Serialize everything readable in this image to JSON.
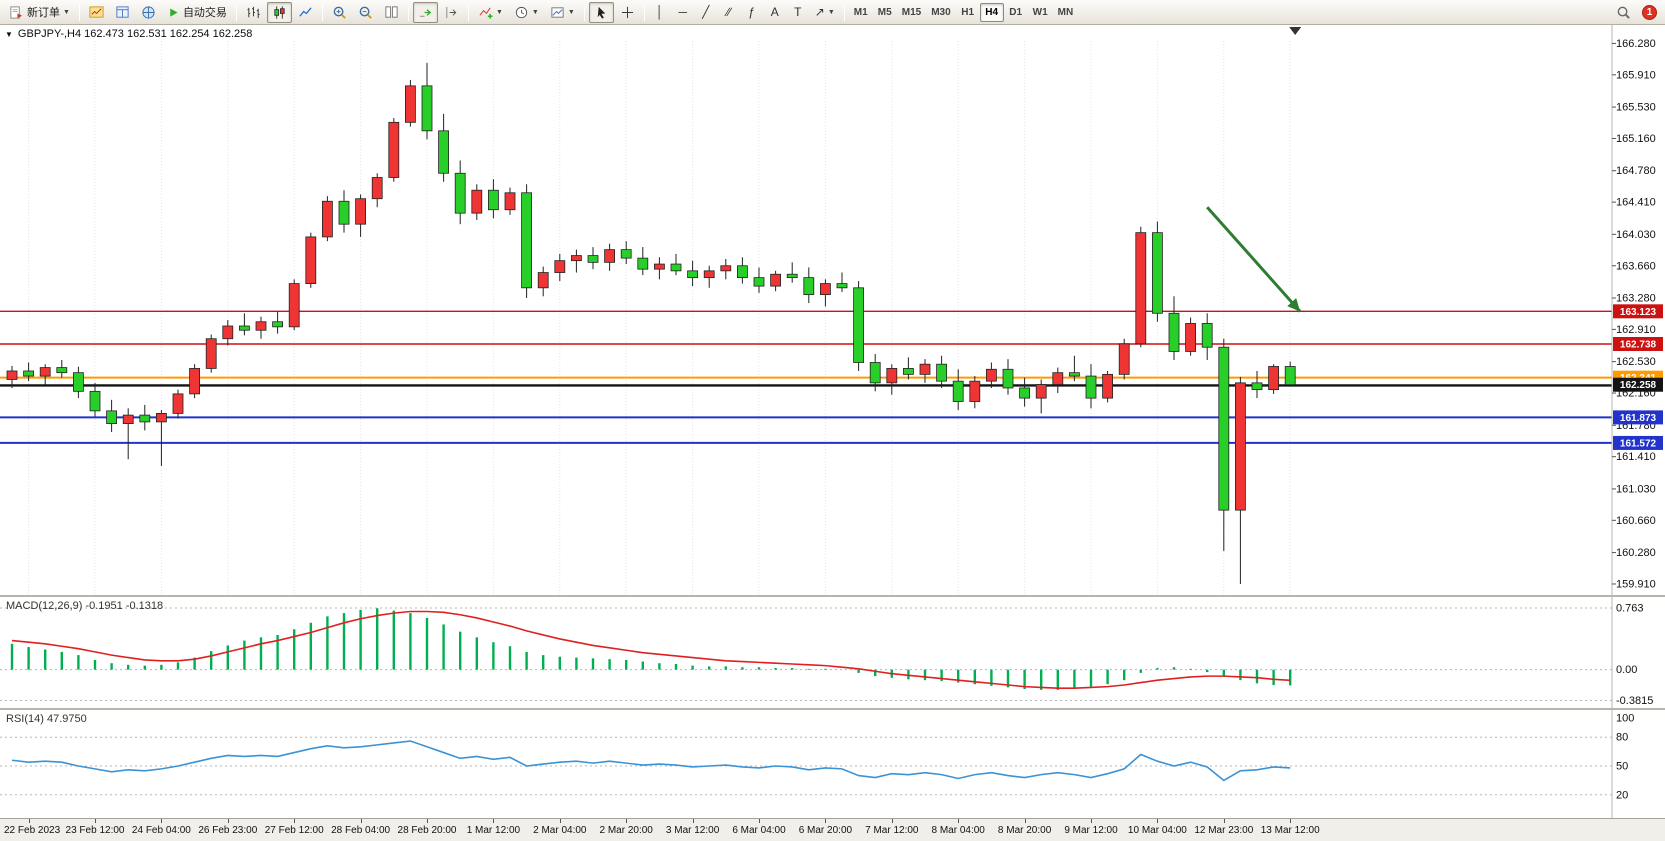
{
  "toolbar": {
    "new_order_label": "新订单",
    "autotrading_label": "自动交易",
    "timeframes": [
      "M1",
      "M5",
      "M15",
      "M30",
      "H1",
      "H4",
      "D1",
      "W1",
      "MN"
    ],
    "active_timeframe": "H4",
    "pressed_buttons": [
      "candlestick-chart-button",
      "auto-scroll-button",
      "cursor-button"
    ],
    "badge_count": "1"
  },
  "chart_header": {
    "title": "GBPJPY-,H4 162.473 162.531 162.254 162.258"
  },
  "indicator_labels": {
    "macd": "MACD(12,26,9) -0.1951 -0.1318",
    "rsi": "RSI(14) 47.9750"
  },
  "chart_data": [
    {
      "type": "candlestick",
      "symbol": "GBPJPY-",
      "timeframe": "H4",
      "ohlc_display": {
        "open": "162.473",
        "high": "162.531",
        "low": "162.254",
        "close": "162.258"
      },
      "ylim": [
        159.78,
        166.45
      ],
      "price_ticks": [
        "166.280",
        "165.910",
        "165.530",
        "165.160",
        "164.780",
        "164.410",
        "164.030",
        "163.660",
        "163.280",
        "162.910",
        "162.530",
        "162.160",
        "161.780",
        "161.410",
        "161.030",
        "160.660",
        "160.280",
        "159.910"
      ],
      "x_labels": [
        "22 Feb 2023",
        "23 Feb 12:00",
        "24 Feb 04:00",
        "26 Feb 23:00",
        "27 Feb 12:00",
        "28 Feb 04:00",
        "28 Feb 20:00",
        "1 Mar 12:00",
        "2 Mar 04:00",
        "2 Mar 20:00",
        "3 Mar 12:00",
        "6 Mar 04:00",
        "6 Mar 20:00",
        "7 Mar 12:00",
        "8 Mar 04:00",
        "8 Mar 20:00",
        "9 Mar 12:00",
        "10 Mar 04:00",
        "12 Mar 23:00",
        "13 Mar 12:00"
      ],
      "x_label_bar_index": [
        1,
        5,
        9,
        13,
        17,
        21,
        25,
        29,
        33,
        37,
        41,
        45,
        49,
        53,
        57,
        61,
        65,
        69,
        73,
        77
      ],
      "bull_color": "#ef3434",
      "bear_color": "#29cf29",
      "candles": [
        [
          162.32,
          162.48,
          162.22,
          162.42
        ],
        [
          162.42,
          162.52,
          162.3,
          162.36
        ],
        [
          162.36,
          162.5,
          162.26,
          162.46
        ],
        [
          162.46,
          162.55,
          162.34,
          162.4
        ],
        [
          162.4,
          162.47,
          162.1,
          162.18
        ],
        [
          162.18,
          162.28,
          161.88,
          161.95
        ],
        [
          161.95,
          162.08,
          161.7,
          161.8
        ],
        [
          161.8,
          161.98,
          161.38,
          161.9
        ],
        [
          161.9,
          162.02,
          161.72,
          161.82
        ],
        [
          161.82,
          161.96,
          161.3,
          161.92
        ],
        [
          161.92,
          162.2,
          161.86,
          162.15
        ],
        [
          162.15,
          162.5,
          162.1,
          162.45
        ],
        [
          162.45,
          162.85,
          162.4,
          162.8
        ],
        [
          162.8,
          163.02,
          162.72,
          162.95
        ],
        [
          162.95,
          163.1,
          162.84,
          162.9
        ],
        [
          162.9,
          163.06,
          162.8,
          163.0
        ],
        [
          163.0,
          163.12,
          162.86,
          162.94
        ],
        [
          162.94,
          163.5,
          162.9,
          163.45
        ],
        [
          163.45,
          164.05,
          163.4,
          164.0
        ],
        [
          164.0,
          164.48,
          163.95,
          164.42
        ],
        [
          164.42,
          164.55,
          164.05,
          164.15
        ],
        [
          164.15,
          164.5,
          164.0,
          164.45
        ],
        [
          164.45,
          164.75,
          164.35,
          164.7
        ],
        [
          164.7,
          165.4,
          164.65,
          165.35
        ],
        [
          165.35,
          165.85,
          165.3,
          165.78
        ],
        [
          165.78,
          166.05,
          165.15,
          165.25
        ],
        [
          165.25,
          165.45,
          164.65,
          164.75
        ],
        [
          164.75,
          164.9,
          164.15,
          164.28
        ],
        [
          164.28,
          164.62,
          164.2,
          164.55
        ],
        [
          164.55,
          164.68,
          164.22,
          164.32
        ],
        [
          164.32,
          164.58,
          164.26,
          164.52
        ],
        [
          164.52,
          164.62,
          163.28,
          163.4
        ],
        [
          163.4,
          163.65,
          163.3,
          163.58
        ],
        [
          163.58,
          163.8,
          163.48,
          163.72
        ],
        [
          163.72,
          163.85,
          163.58,
          163.78
        ],
        [
          163.78,
          163.88,
          163.62,
          163.7
        ],
        [
          163.7,
          163.92,
          163.6,
          163.85
        ],
        [
          163.85,
          163.95,
          163.68,
          163.75
        ],
        [
          163.75,
          163.88,
          163.55,
          163.62
        ],
        [
          163.62,
          163.76,
          163.5,
          163.68
        ],
        [
          163.68,
          163.8,
          163.55,
          163.6
        ],
        [
          163.6,
          163.72,
          163.42,
          163.52
        ],
        [
          163.52,
          163.66,
          163.4,
          163.6
        ],
        [
          163.6,
          163.74,
          163.5,
          163.66
        ],
        [
          163.66,
          163.76,
          163.45,
          163.52
        ],
        [
          163.52,
          163.64,
          163.34,
          163.42
        ],
        [
          163.42,
          163.6,
          163.36,
          163.56
        ],
        [
          163.56,
          163.7,
          163.46,
          163.52
        ],
        [
          163.52,
          163.64,
          163.22,
          163.32
        ],
        [
          163.32,
          163.5,
          163.18,
          163.45
        ],
        [
          163.45,
          163.58,
          163.35,
          163.4
        ],
        [
          163.4,
          163.48,
          162.42,
          162.52
        ],
        [
          162.52,
          162.62,
          162.18,
          162.28
        ],
        [
          162.28,
          162.5,
          162.14,
          162.45
        ],
        [
          162.45,
          162.58,
          162.32,
          162.38
        ],
        [
          162.38,
          162.56,
          162.28,
          162.5
        ],
        [
          162.5,
          162.6,
          162.22,
          162.3
        ],
        [
          162.3,
          162.44,
          161.96,
          162.06
        ],
        [
          162.06,
          162.36,
          161.98,
          162.3
        ],
        [
          162.3,
          162.52,
          162.22,
          162.44
        ],
        [
          162.44,
          162.56,
          162.14,
          162.22
        ],
        [
          162.22,
          162.34,
          162.0,
          162.1
        ],
        [
          162.1,
          162.32,
          161.92,
          162.26
        ],
        [
          162.26,
          162.46,
          162.16,
          162.4
        ],
        [
          162.4,
          162.6,
          162.3,
          162.36
        ],
        [
          162.36,
          162.5,
          161.98,
          162.1
        ],
        [
          162.1,
          162.42,
          162.05,
          162.38
        ],
        [
          162.38,
          162.8,
          162.32,
          162.74
        ],
        [
          162.74,
          164.12,
          162.7,
          164.05
        ],
        [
          164.05,
          164.18,
          163.0,
          163.1
        ],
        [
          163.1,
          163.3,
          162.55,
          162.65
        ],
        [
          162.65,
          163.05,
          162.6,
          162.98
        ],
        [
          162.98,
          163.1,
          162.55,
          162.7
        ],
        [
          162.7,
          162.8,
          160.3,
          160.78
        ],
        [
          160.78,
          162.35,
          159.91,
          162.28
        ],
        [
          162.28,
          162.42,
          162.1,
          162.2
        ],
        [
          162.2,
          162.5,
          162.15,
          162.473
        ],
        [
          162.473,
          162.531,
          162.254,
          162.258
        ]
      ],
      "hlines": [
        {
          "price": 163.123,
          "color": "#cc1111",
          "width": 1.4,
          "label": "163.123",
          "label_bg": "#cc1111"
        },
        {
          "price": 162.738,
          "color": "#cc1111",
          "width": 1.4,
          "label": "162.738",
          "label_bg": "#cc1111"
        },
        {
          "price": 162.341,
          "color": "#ff9a00",
          "width": 2,
          "label": "162.341",
          "label_bg": "#ff9a00"
        },
        {
          "price": 162.25,
          "color": "#141414",
          "width": 2.4,
          "label": "",
          "label_bg": ""
        },
        {
          "price": 161.873,
          "color": "#2233cc",
          "width": 2,
          "label": "161.873",
          "label_bg": "#2233cc"
        },
        {
          "price": 161.572,
          "color": "#2233cc",
          "width": 2,
          "label": "161.572",
          "label_bg": "#2233cc"
        }
      ],
      "current_price": {
        "value": "162.258",
        "box_color": "#141414"
      },
      "shift_marker_bar": 77.3,
      "arrow_annotation": {
        "from_bar": 72.0,
        "from_price": 164.35,
        "to_bar": 77.6,
        "to_price": 163.12,
        "color": "#2e7d32"
      }
    },
    {
      "type": "bar",
      "name": "MACD",
      "params": "12,26,9",
      "values_label": "-0.1951 -0.1318",
      "ylim": [
        -0.45,
        0.85
      ],
      "axis_ticks": [
        {
          "v": 0.763,
          "label": "0.763"
        },
        {
          "v": 0,
          "label": "0.00"
        },
        {
          "v": -0.3815,
          "label": "-0.3815"
        }
      ],
      "histogram_color": "#00b050",
      "signal_color": "#e02020",
      "histogram": [
        0.32,
        0.28,
        0.25,
        0.22,
        0.18,
        0.12,
        0.08,
        0.06,
        0.05,
        0.06,
        0.09,
        0.15,
        0.23,
        0.3,
        0.36,
        0.4,
        0.43,
        0.5,
        0.58,
        0.66,
        0.7,
        0.74,
        0.76,
        0.73,
        0.7,
        0.64,
        0.56,
        0.47,
        0.4,
        0.34,
        0.29,
        0.22,
        0.18,
        0.16,
        0.15,
        0.14,
        0.13,
        0.12,
        0.1,
        0.08,
        0.07,
        0.05,
        0.04,
        0.04,
        0.03,
        0.03,
        0.02,
        0.02,
        0.01,
        0.01,
        0.0,
        -0.04,
        -0.08,
        -0.1,
        -0.12,
        -0.13,
        -0.14,
        -0.16,
        -0.18,
        -0.2,
        -0.22,
        -0.24,
        -0.25,
        -0.25,
        -0.23,
        -0.21,
        -0.18,
        -0.13,
        -0.04,
        0.02,
        0.03,
        0.01,
        -0.03,
        -0.08,
        -0.13,
        -0.17,
        -0.19,
        -0.195
      ],
      "signal": [
        0.36,
        0.34,
        0.32,
        0.29,
        0.26,
        0.22,
        0.18,
        0.15,
        0.12,
        0.11,
        0.11,
        0.13,
        0.17,
        0.22,
        0.27,
        0.32,
        0.36,
        0.41,
        0.46,
        0.52,
        0.58,
        0.63,
        0.67,
        0.7,
        0.72,
        0.72,
        0.71,
        0.68,
        0.64,
        0.59,
        0.54,
        0.48,
        0.43,
        0.38,
        0.34,
        0.3,
        0.27,
        0.24,
        0.21,
        0.19,
        0.17,
        0.15,
        0.13,
        0.11,
        0.1,
        0.09,
        0.08,
        0.07,
        0.06,
        0.05,
        0.03,
        0.01,
        -0.02,
        -0.05,
        -0.07,
        -0.09,
        -0.11,
        -0.13,
        -0.15,
        -0.17,
        -0.19,
        -0.21,
        -0.22,
        -0.23,
        -0.23,
        -0.22,
        -0.21,
        -0.19,
        -0.16,
        -0.13,
        -0.11,
        -0.09,
        -0.08,
        -0.08,
        -0.09,
        -0.1,
        -0.12,
        -0.1318
      ]
    },
    {
      "type": "line",
      "name": "RSI",
      "params": "14",
      "value_label": "47.9750",
      "ylim": [
        0,
        100
      ],
      "axis_ticks": [
        {
          "v": 100,
          "label": "100"
        },
        {
          "v": 80,
          "label": "80"
        },
        {
          "v": 50,
          "label": "50"
        },
        {
          "v": 20,
          "label": "20"
        }
      ],
      "level_lines": [
        80,
        50,
        20
      ],
      "line_color": "#3a93d6",
      "values": [
        56,
        54,
        55,
        54,
        50,
        47,
        44,
        46,
        45,
        47,
        50,
        54,
        58,
        61,
        60,
        61,
        60,
        64,
        68,
        71,
        69,
        70,
        72,
        74,
        76,
        70,
        64,
        58,
        60,
        57,
        59,
        50,
        52,
        54,
        55,
        53,
        55,
        53,
        51,
        52,
        51,
        49,
        50,
        51,
        49,
        48,
        50,
        49,
        46,
        48,
        47,
        40,
        38,
        42,
        41,
        43,
        41,
        37,
        41,
        43,
        40,
        38,
        41,
        43,
        41,
        38,
        42,
        47,
        62,
        55,
        50,
        54,
        49,
        35,
        45,
        46,
        49,
        48
      ]
    }
  ]
}
